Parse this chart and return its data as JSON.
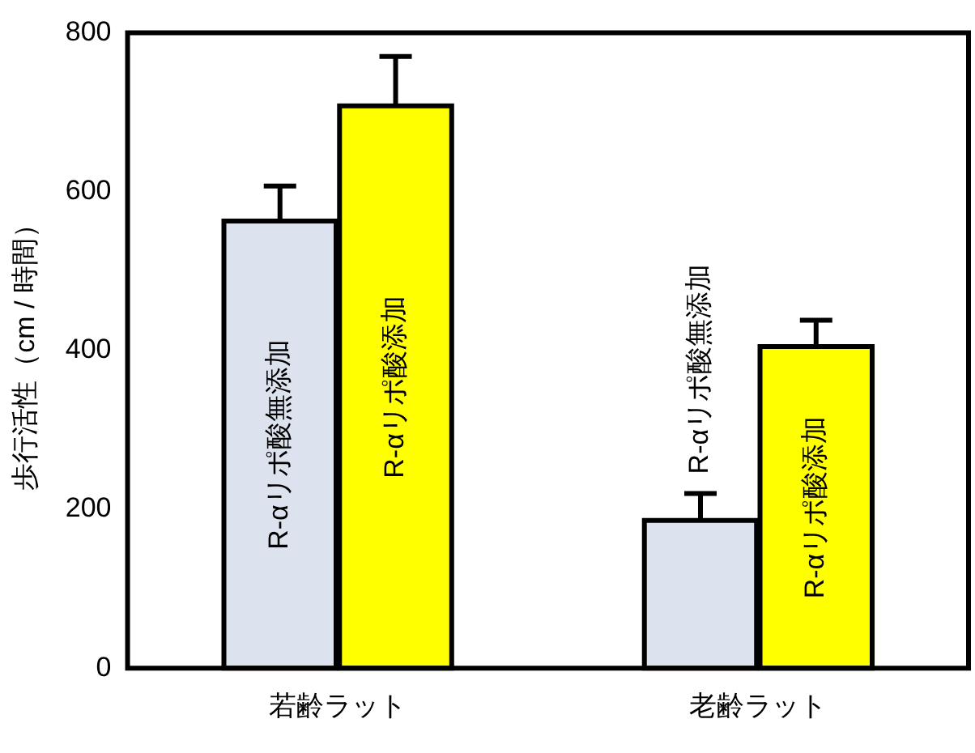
{
  "chart_data": {
    "type": "bar",
    "ylabel": "歩行活性（cm / 時間）",
    "categories": [
      "若齢ラット",
      "老齢ラット"
    ],
    "series": [
      {
        "name": "R-αリポ酸無添加",
        "color": "#dce3ee",
        "values": [
          563,
          186
        ],
        "errors": [
          [
            563,
            607
          ],
          [
            186,
            220
          ]
        ]
      },
      {
        "name": "R-αリポ酸添加",
        "color": "#ffff00",
        "values": [
          708,
          405
        ],
        "errors": [
          [
            708,
            770
          ],
          [
            405,
            438
          ]
        ]
      }
    ],
    "ylim": [
      0,
      800
    ],
    "yticks": [
      0,
      200,
      400,
      600,
      800
    ],
    "grid": false,
    "legend": false
  }
}
